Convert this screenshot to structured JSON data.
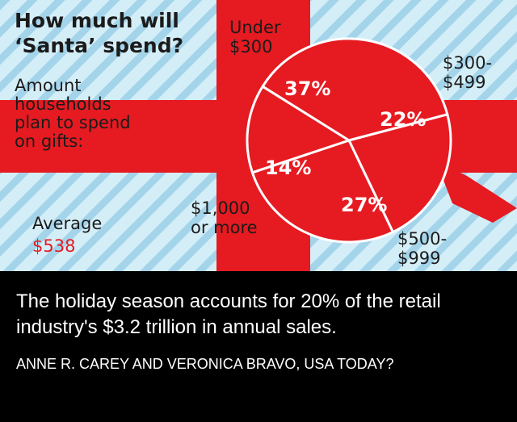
{
  "title_line1": "How much will",
  "title_line2": "‘Santa’ spend?",
  "subtitle_lines": [
    "Amount",
    "households",
    "plan to spend",
    "on gifts:"
  ],
  "average_label": "Average",
  "average_value": "$538",
  "caption": "The holiday season accounts for 20% of the retail industry's $3.2 trillion in annual sales.",
  "credit": "ANNE R. CAREY AND VERONICA BRAVO, USA TODAY?",
  "colors": {
    "red": "#e61a21",
    "stripe_light": "#d4eef8",
    "stripe_dark": "#a4d4ea",
    "ink": "#1b1b1b",
    "accent": "#e61a21"
  },
  "chart_data": {
    "type": "pie",
    "categories": [
      "Under $300",
      "$300-$499",
      "$500-$999",
      "$1,000 or more"
    ],
    "values": [
      37,
      22,
      27,
      14
    ],
    "value_labels": [
      "37%",
      "22%",
      "27%",
      "14%"
    ],
    "category_label_lines": [
      [
        "Under",
        "$300"
      ],
      [
        "$300-",
        "$499"
      ],
      [
        "$500-",
        "$999"
      ],
      [
        "$1,000",
        "or more"
      ]
    ],
    "title": "How much will ‘Santa’ spend?",
    "subtitle": "Amount households plan to spend on gifts:"
  }
}
